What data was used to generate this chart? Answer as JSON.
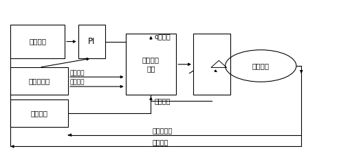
{
  "background_color": "#ffffff",
  "text_color": "#000000",
  "box_edge_color": "#000000",
  "figsize": [
    4.93,
    2.23
  ],
  "dpi": 100,
  "boxes": {
    "speed": [
      0.03,
      0.62,
      0.16,
      0.22
    ],
    "PI": [
      0.23,
      0.62,
      0.08,
      0.22
    ],
    "ctrl": [
      0.37,
      0.38,
      0.15,
      0.4
    ],
    "enc": [
      0.03,
      0.38,
      0.17,
      0.18
    ],
    "conv": [
      0.03,
      0.17,
      0.17,
      0.18
    ],
    "inv": [
      0.57,
      0.38,
      0.11,
      0.4
    ]
  },
  "motor": [
    0.77,
    0.57,
    0.105
  ],
  "labels": {
    "speed": "速度指令",
    "PI": "PI",
    "ctrl": "电流控制\n模块",
    "enc": "增量编码器",
    "conv": "转换模块",
    "motor": "被控电机",
    "q_current": "q轴电流",
    "rt_speed": "实时速度",
    "rt_pos": "实时位置",
    "resp_current": "响应电流",
    "sensor_v": "传感器电压",
    "enc_count": "编码计数"
  }
}
